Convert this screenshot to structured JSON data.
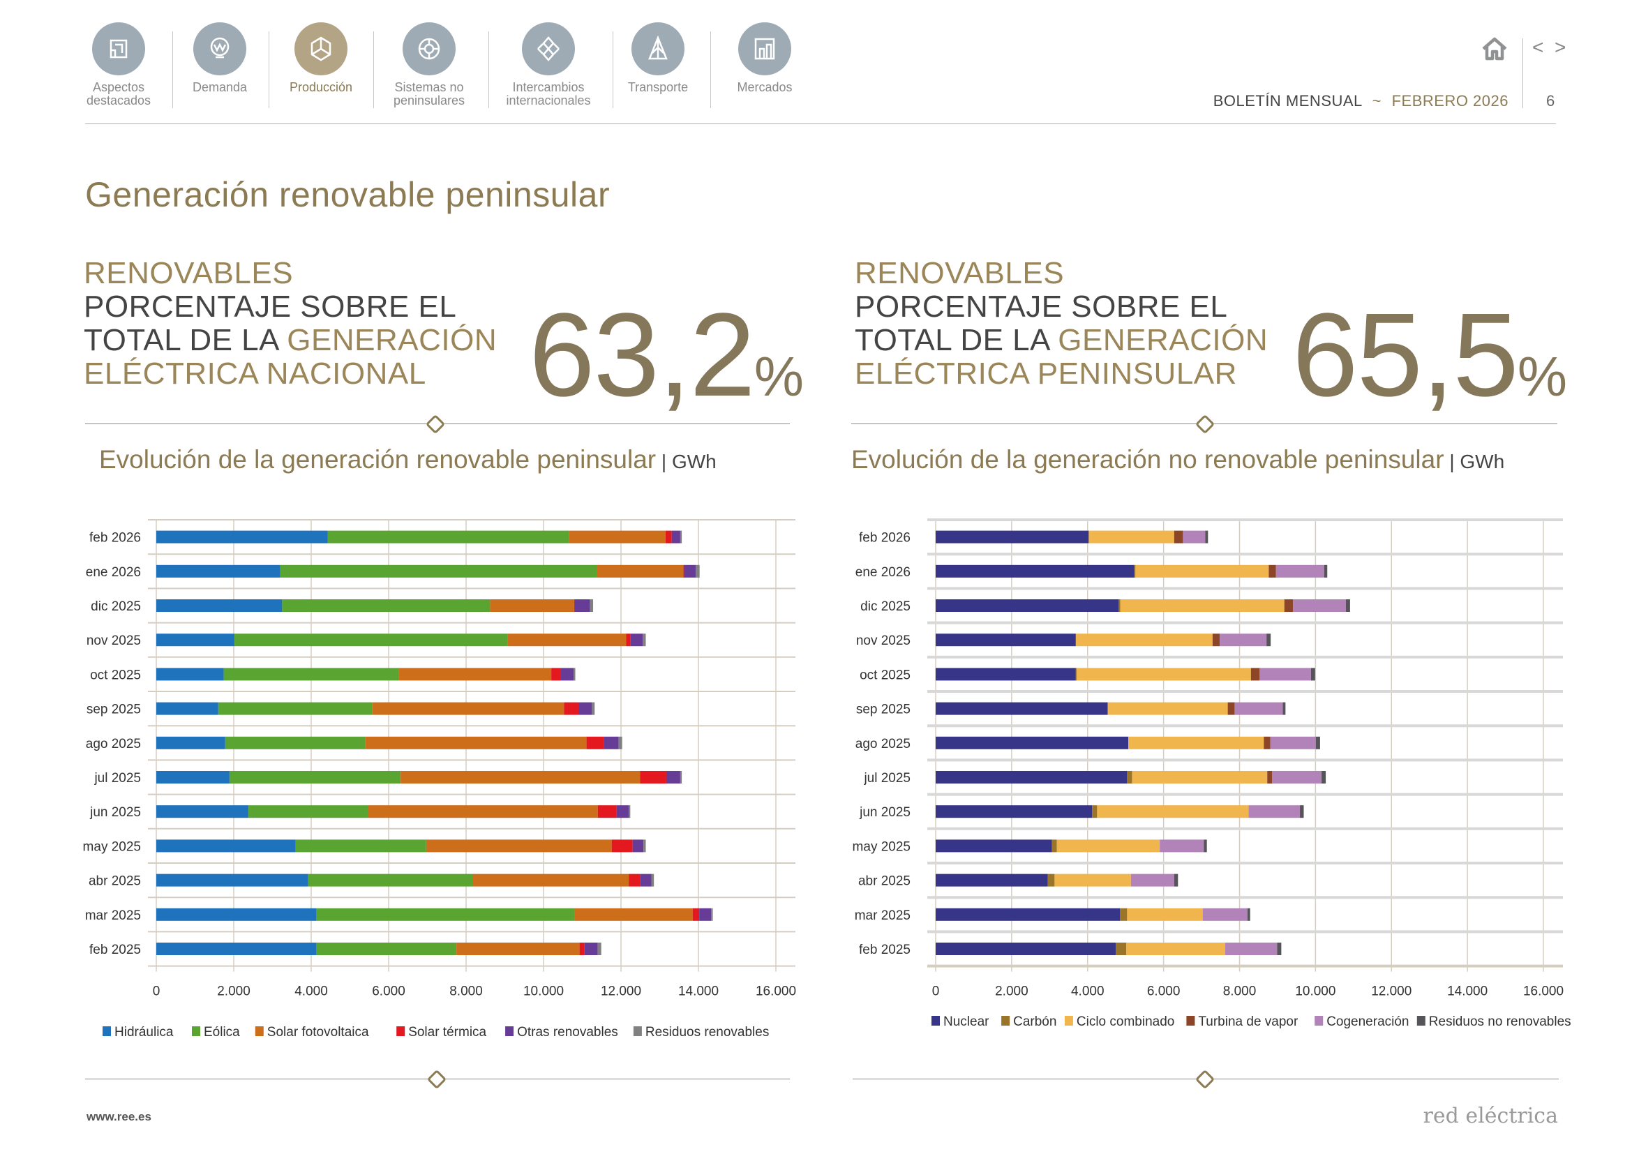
{
  "nav": {
    "items": [
      {
        "label_1": "Aspectos",
        "label_2": "destacados",
        "icon": "document-icon",
        "active": false
      },
      {
        "label_1": "Demanda",
        "label_2": "",
        "icon": "lightbulb-icon",
        "active": false
      },
      {
        "label_1": "Producción",
        "label_2": "",
        "icon": "cube-icon",
        "active": true
      },
      {
        "label_1": "Sistemas no",
        "label_2": "peninsulares",
        "icon": "target-icon",
        "active": false
      },
      {
        "label_1": "Intercambios",
        "label_2": "internacionales",
        "icon": "exchange-icon",
        "active": false
      },
      {
        "label_1": "Transporte",
        "label_2": "",
        "icon": "pylon-icon",
        "active": false
      },
      {
        "label_1": "Mercados",
        "label_2": "",
        "icon": "market-chart-icon",
        "active": false
      }
    ]
  },
  "header": {
    "bulletin": "BOLETÍN MENSUAL",
    "separator": "~",
    "period": "FEBRERO 2026",
    "page": "6",
    "prev": "<",
    "next": ">"
  },
  "page_title": "Generación renovable peninsular",
  "kpis": [
    {
      "l1": "RENOVABLES",
      "l2": "PORCENTAJE SOBRE EL",
      "l3a": "TOTAL DE LA ",
      "l3b": "GENERACIÓN",
      "l4": "ELÉCTRICA NACIONAL",
      "value": "63,2",
      "unit": "%"
    },
    {
      "l1": "RENOVABLES",
      "l2": "PORCENTAJE SOBRE EL",
      "l3a": "TOTAL DE LA ",
      "l3b": "GENERACIÓN",
      "l4": "ELÉCTRICA PENINSULAR",
      "value": "65,5",
      "unit": "%"
    }
  ],
  "footer": {
    "url": "www.ree.es",
    "brand": "red eléctrica"
  },
  "colors": {
    "gold": "#8b7a52",
    "nav_icon": "#9eabb4",
    "nav_active": "#b3a486"
  },
  "chart_data": [
    {
      "type": "bar",
      "orientation": "horizontal",
      "stacked": true,
      "title": "Evolución de la generación renovable peninsular",
      "unit": "GWh",
      "categories": [
        "feb 2026",
        "ene 2026",
        "dic 2025",
        "nov 2025",
        "oct 2025",
        "sep 2025",
        "ago 2025",
        "jul 2025",
        "jun 2025",
        "may 2025",
        "abr 2025",
        "mar 2025",
        "feb 2025"
      ],
      "xlim": [
        0,
        16000
      ],
      "ticks": [
        0,
        2000,
        4000,
        6000,
        8000,
        10000,
        12000,
        14000,
        16000
      ],
      "tick_labels": [
        "0",
        "2.000",
        "4.000",
        "6.000",
        "8.000",
        "10.000",
        "12.000",
        "14.000",
        "16.000"
      ],
      "grid": true,
      "legend": "bottom",
      "series": [
        {
          "name": "Hidráulica",
          "color": "#1f73bd",
          "values": [
            4430,
            3200,
            3250,
            2020,
            1740,
            1600,
            1780,
            1890,
            2380,
            3600,
            3920,
            4140,
            4140
          ]
        },
        {
          "name": "Eólica",
          "color": "#5aa532",
          "values": [
            6230,
            8170,
            5370,
            7050,
            4520,
            3980,
            3610,
            4420,
            3080,
            3370,
            4260,
            6670,
            3610
          ]
        },
        {
          "name": "Solar fotovoltaica",
          "color": "#cd6e1b",
          "values": [
            2490,
            2240,
            2170,
            3060,
            3940,
            4950,
            5720,
            6180,
            5940,
            4790,
            4020,
            3040,
            3180
          ]
        },
        {
          "name": "Solar térmica",
          "color": "#e3191f",
          "values": [
            160,
            20,
            20,
            110,
            250,
            380,
            450,
            680,
            490,
            540,
            290,
            170,
            130
          ]
        },
        {
          "name": "Otras renovables",
          "color": "#673c97",
          "values": [
            220,
            300,
            390,
            320,
            330,
            340,
            380,
            360,
            310,
            280,
            300,
            310,
            340
          ]
        },
        {
          "name": "Residuos renovables",
          "color": "#808080",
          "values": [
            40,
            100,
            80,
            80,
            40,
            70,
            90,
            40,
            40,
            60,
            60,
            40,
            90
          ]
        }
      ]
    },
    {
      "type": "bar",
      "orientation": "horizontal",
      "stacked": true,
      "title": "Evolución de la generación no renovable peninsular",
      "unit": "GWh",
      "categories": [
        "feb 2026",
        "ene 2026",
        "dic 2025",
        "nov 2025",
        "oct 2025",
        "sep 2025",
        "ago 2025",
        "jul 2025",
        "jun 2025",
        "may 2025",
        "abr 2025",
        "mar 2025",
        "feb 2025"
      ],
      "xlim": [
        0,
        16000
      ],
      "ticks": [
        0,
        2000,
        4000,
        6000,
        8000,
        10000,
        12000,
        14000,
        16000
      ],
      "tick_labels": [
        "0",
        "2.000",
        "4.000",
        "6.000",
        "8.000",
        "10.000",
        "12.000",
        "14.000",
        "16.000"
      ],
      "grid": true,
      "legend": "bottom",
      "series": [
        {
          "name": "Nuclear",
          "color": "#373587",
          "values": [
            4030,
            5230,
            4820,
            3690,
            3690,
            4520,
            5070,
            5040,
            4120,
            3060,
            2950,
            4850,
            4740
          ]
        },
        {
          "name": "Carbón",
          "color": "#9a7428",
          "values": [
            0,
            30,
            40,
            0,
            20,
            20,
            0,
            130,
            130,
            130,
            180,
            190,
            280
          ]
        },
        {
          "name": "Ciclo combinado",
          "color": "#f0b54c",
          "values": [
            2250,
            3510,
            4320,
            3600,
            4590,
            3150,
            3570,
            3560,
            3990,
            2710,
            2010,
            1990,
            2600
          ]
        },
        {
          "name": "Turbina de vapor",
          "color": "#8d4527",
          "values": [
            230,
            190,
            230,
            190,
            230,
            180,
            170,
            130,
            0,
            0,
            0,
            0,
            0
          ]
        },
        {
          "name": "Cogeneración",
          "color": "#b283b8",
          "values": [
            590,
            1270,
            1390,
            1230,
            1350,
            1270,
            1200,
            1300,
            1350,
            1160,
            1140,
            1180,
            1370
          ]
        },
        {
          "name": "Residuos no renovables",
          "color": "#555559",
          "values": [
            70,
            80,
            110,
            110,
            110,
            70,
            110,
            110,
            100,
            80,
            100,
            70,
            110
          ]
        }
      ]
    }
  ]
}
